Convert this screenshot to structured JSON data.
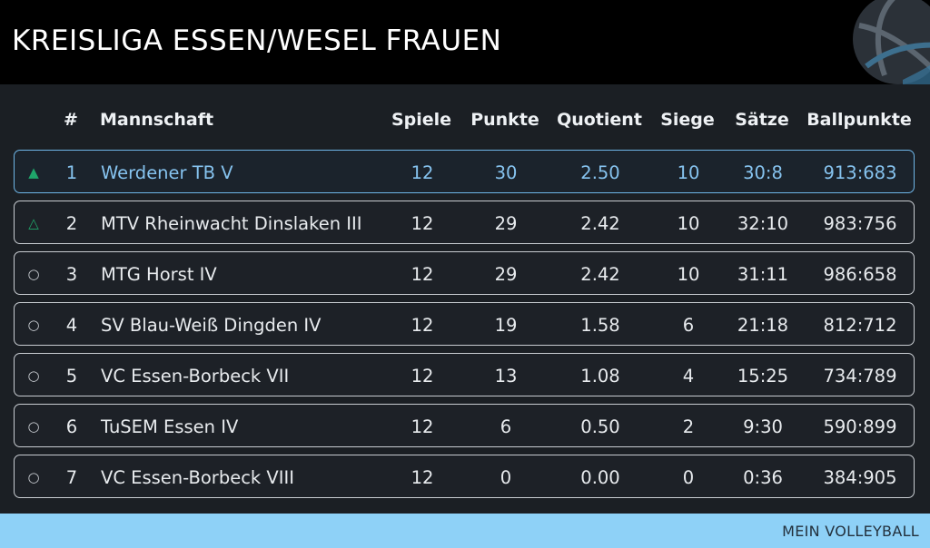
{
  "header": {
    "title": "KREISLIGA ESSEN/WESEL FRAUEN",
    "logo_icon": "volleyball-icon"
  },
  "table": {
    "columns": {
      "rank": "#",
      "team": "Mannschaft",
      "spiele": "Spiele",
      "punkte": "Punkte",
      "quotient": "Quotient",
      "siege": "Siege",
      "saetze": "Sätze",
      "ballpunkte": "Ballpunkte"
    },
    "rows": [
      {
        "indicator": "▲",
        "indicator_icon": "promotion-filled-triangle-icon",
        "rank": "1",
        "team": "Werdener TB V",
        "spiele": "12",
        "punkte": "30",
        "quotient": "2.50",
        "siege": "10",
        "saetze": "30:8",
        "ballpunkte": "913:683"
      },
      {
        "indicator": "△",
        "indicator_icon": "promotion-outline-triangle-icon",
        "rank": "2",
        "team": "MTV Rheinwacht Dinslaken III",
        "spiele": "12",
        "punkte": "29",
        "quotient": "2.42",
        "siege": "10",
        "saetze": "32:10",
        "ballpunkte": "983:756"
      },
      {
        "indicator": "○",
        "indicator_icon": "neutral-circle-icon",
        "rank": "3",
        "team": "MTG Horst IV",
        "spiele": "12",
        "punkte": "29",
        "quotient": "2.42",
        "siege": "10",
        "saetze": "31:11",
        "ballpunkte": "986:658"
      },
      {
        "indicator": "○",
        "indicator_icon": "neutral-circle-icon",
        "rank": "4",
        "team": "SV Blau-Weiß Dingden IV",
        "spiele": "12",
        "punkte": "19",
        "quotient": "1.58",
        "siege": "6",
        "saetze": "21:18",
        "ballpunkte": "812:712"
      },
      {
        "indicator": "○",
        "indicator_icon": "neutral-circle-icon",
        "rank": "5",
        "team": "VC Essen-Borbeck VII",
        "spiele": "12",
        "punkte": "13",
        "quotient": "1.08",
        "siege": "4",
        "saetze": "15:25",
        "ballpunkte": "734:789"
      },
      {
        "indicator": "○",
        "indicator_icon": "neutral-circle-icon",
        "rank": "6",
        "team": "TuSEM Essen IV",
        "spiele": "12",
        "punkte": "6",
        "quotient": "0.50",
        "siege": "2",
        "saetze": "9:30",
        "ballpunkte": "590:899"
      },
      {
        "indicator": "○",
        "indicator_icon": "neutral-circle-icon",
        "rank": "7",
        "team": "VC Essen-Borbeck VIII",
        "spiele": "12",
        "punkte": "0",
        "quotient": "0.00",
        "siege": "0",
        "saetze": "0:36",
        "ballpunkte": "384:905"
      }
    ]
  },
  "footer": {
    "brand": "MEIN VOLLEYBALL"
  },
  "colors": {
    "background": "#1b1f24",
    "header": "#000000",
    "highlight": "#86c3ef",
    "promotion": "#1fa56a",
    "footer": "#8ed1f7"
  }
}
